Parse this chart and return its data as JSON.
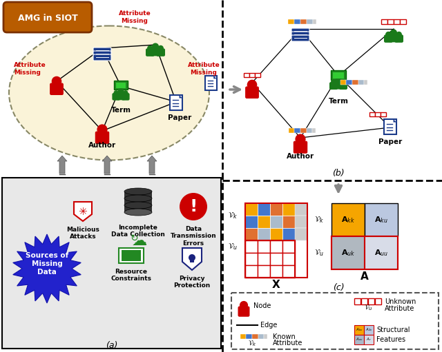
{
  "bg_color": "#ffffff",
  "panel_a_bg": "#e8e8e8",
  "ellipse_bg": "#faf3d8",
  "ellipse_edge": "#888866",
  "orange_box_bg": "#b85c00",
  "orange_box_text": "AMG in SIOT",
  "arrow_color": "#808080",
  "red_color": "#cc0000",
  "blue_color": "#1a3a8a",
  "green_color": "#1a7a1a",
  "dark_blue": "#1a237e",
  "gold_color": "#f5a500",
  "blue_cell": "#4477cc",
  "orange_cell": "#ff8800",
  "gray_cell": "#aabbcc",
  "structural_kk_bg": "#f5a500",
  "structural_ku_bg": "#bbc8e0",
  "structural_uk_bg": "#aab8c8",
  "structural_uu_bg": "#d8dce8",
  "label_a": "(a)",
  "label_b": "(b)",
  "label_c": "(c)",
  "known_attr_colors": [
    "#f5a500",
    "#4477cc",
    "#e07030",
    "#aabbcc"
  ],
  "x_known_rows": [
    [
      "#f5a500",
      "#4477cc",
      "#e07030",
      "#aabbcc",
      "#f5a500"
    ],
    [
      "#4477cc",
      "#f5a500",
      "#aabbcc",
      "#e07030",
      "#aabbcc"
    ],
    [
      "#e07030",
      "#aabbcc",
      "#f5a500",
      "#4477cc",
      "#e07030"
    ]
  ]
}
